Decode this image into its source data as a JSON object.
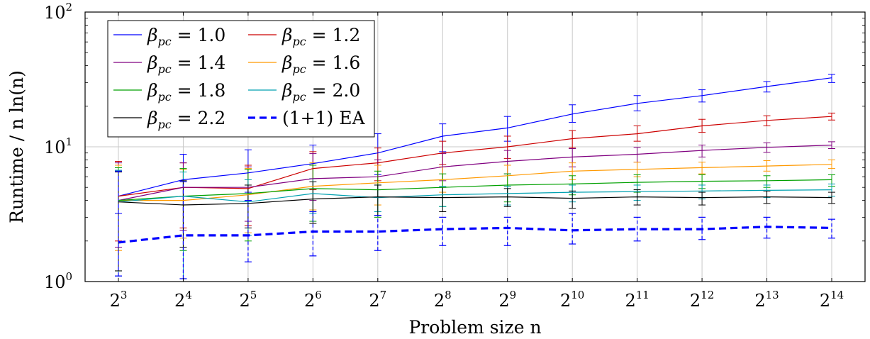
{
  "chart_data": {
    "type": "line",
    "title": "",
    "xlabel": "Problem size n",
    "ylabel": "Runtime / n ln(n)",
    "yscale": "log",
    "ylim": [
      1,
      100
    ],
    "y_ticks": [
      {
        "value": 1,
        "base": "10",
        "exp": "0"
      },
      {
        "value": 10,
        "base": "10",
        "exp": "1"
      },
      {
        "value": 100,
        "base": "10",
        "exp": "2"
      }
    ],
    "grid": true,
    "legend_position": "top-left",
    "categories": [
      {
        "base": "2",
        "exp": "3"
      },
      {
        "base": "2",
        "exp": "4"
      },
      {
        "base": "2",
        "exp": "5"
      },
      {
        "base": "2",
        "exp": "6"
      },
      {
        "base": "2",
        "exp": "7"
      },
      {
        "base": "2",
        "exp": "8"
      },
      {
        "base": "2",
        "exp": "9"
      },
      {
        "base": "2",
        "exp": "10"
      },
      {
        "base": "2",
        "exp": "11"
      },
      {
        "base": "2",
        "exp": "12"
      },
      {
        "base": "2",
        "exp": "13"
      },
      {
        "base": "2",
        "exp": "14"
      }
    ],
    "series": [
      {
        "name": "β_pc = 1.0",
        "legend": {
          "symbol": "β",
          "sub": "pc",
          "rest": " = 1.0"
        },
        "color": "#0000ff",
        "dashed": false,
        "values": [
          4.3,
          5.7,
          6.4,
          7.5,
          9.0,
          12.0,
          13.8,
          17.5,
          21.0,
          24.0,
          28.0,
          32.5
        ],
        "err_low": [
          3.2,
          4.3,
          4.6,
          5.8,
          6.2,
          9.2,
          11.0,
          15.2,
          18.5,
          21.5,
          25.5,
          30.0
        ],
        "err_high": [
          7.8,
          8.8,
          9.5,
          10.3,
          12.5,
          14.8,
          16.8,
          20.5,
          24.0,
          26.5,
          30.5,
          34.5
        ]
      },
      {
        "name": "β_pc = 1.2",
        "legend": {
          "symbol": "β",
          "sub": "pc",
          "rest": " = 1.2"
        },
        "color": "#cc0000",
        "dashed": false,
        "values": [
          4.3,
          5.0,
          4.9,
          6.9,
          7.6,
          9.0,
          10.0,
          11.5,
          12.5,
          14.3,
          15.7,
          16.8
        ],
        "err_low": [
          2.0,
          2.5,
          2.6,
          4.8,
          5.6,
          7.4,
          8.2,
          9.8,
          11.0,
          12.8,
          14.3,
          15.8
        ],
        "err_high": [
          7.8,
          7.6,
          7.3,
          9.2,
          9.8,
          11.0,
          12.0,
          13.2,
          14.3,
          16.0,
          17.0,
          17.8
        ]
      },
      {
        "name": "β_pc = 1.4",
        "legend": {
          "symbol": "β",
          "sub": "pc",
          "rest": " = 1.4"
        },
        "color": "#800080",
        "dashed": false,
        "values": [
          4.0,
          5.0,
          5.0,
          5.8,
          6.0,
          7.1,
          7.8,
          8.4,
          8.8,
          9.4,
          9.9,
          10.3
        ],
        "err_low": [
          1.8,
          2.4,
          2.8,
          4.0,
          4.2,
          5.6,
          6.3,
          7.1,
          7.7,
          8.4,
          9.1,
          9.7
        ],
        "err_high": [
          7.6,
          7.6,
          7.1,
          8.9,
          8.0,
          8.9,
          9.4,
          9.7,
          9.9,
          10.3,
          10.7,
          10.9
        ]
      },
      {
        "name": "β_pc = 1.6",
        "legend": {
          "symbol": "β",
          "sub": "pc",
          "rest": " = 1.6"
        },
        "color": "#ff9900",
        "dashed": false,
        "values": [
          4.0,
          4.0,
          4.4,
          5.1,
          5.4,
          5.7,
          6.1,
          6.6,
          6.8,
          7.0,
          7.2,
          7.4
        ],
        "err_low": [
          1.7,
          2.1,
          2.3,
          3.4,
          3.7,
          4.6,
          5.1,
          5.7,
          6.0,
          6.3,
          6.6,
          6.9
        ],
        "err_high": [
          7.3,
          6.8,
          6.9,
          7.6,
          7.3,
          7.1,
          7.3,
          7.6,
          7.7,
          7.7,
          7.9,
          8.0
        ]
      },
      {
        "name": "β_pc = 1.8",
        "legend": {
          "symbol": "β",
          "sub": "pc",
          "rest": " = 1.8"
        },
        "color": "#00a000",
        "dashed": false,
        "values": [
          4.0,
          4.3,
          4.5,
          4.9,
          4.8,
          5.0,
          5.2,
          5.3,
          5.45,
          5.55,
          5.6,
          5.7
        ],
        "err_low": [
          1.2,
          1.7,
          2.0,
          2.8,
          3.0,
          3.6,
          3.9,
          4.4,
          4.6,
          4.9,
          5.0,
          5.1
        ],
        "err_high": [
          7.0,
          6.9,
          6.8,
          7.3,
          6.6,
          6.3,
          6.3,
          6.1,
          6.2,
          6.2,
          6.1,
          6.2
        ]
      },
      {
        "name": "β_pc = 2.0",
        "legend": {
          "symbol": "β",
          "sub": "pc",
          "rest": " = 2.0"
        },
        "color": "#00a0b0",
        "dashed": false,
        "values": [
          3.9,
          4.3,
          3.9,
          4.5,
          4.2,
          4.4,
          4.5,
          4.6,
          4.65,
          4.7,
          4.75,
          4.8
        ],
        "err_low": [
          1.1,
          1.05,
          2.2,
          3.2,
          3.3,
          3.6,
          3.7,
          3.9,
          4.0,
          4.1,
          4.2,
          4.3
        ],
        "err_high": [
          6.7,
          6.5,
          5.7,
          5.8,
          5.2,
          5.1,
          5.1,
          5.2,
          5.2,
          5.2,
          5.2,
          5.3
        ]
      },
      {
        "name": "β_pc = 2.2",
        "legend": {
          "symbol": "β",
          "sub": "pc",
          "rest": " = 2.2"
        },
        "color": "#000000",
        "dashed": false,
        "values": [
          3.9,
          3.7,
          3.8,
          4.1,
          4.25,
          4.2,
          4.25,
          4.15,
          4.25,
          4.2,
          4.25,
          4.2
        ],
        "err_low": [
          1.2,
          1.8,
          2.5,
          2.7,
          3.1,
          3.3,
          3.6,
          3.5,
          3.7,
          3.7,
          3.8,
          3.8
        ],
        "err_high": [
          6.5,
          5.6,
          5.2,
          5.5,
          5.2,
          5.0,
          4.9,
          4.7,
          4.8,
          4.6,
          4.7,
          4.6
        ]
      },
      {
        "name": "(1+1) EA",
        "legend": {
          "symbol": "",
          "sub": "",
          "rest": "(1+1) EA"
        },
        "color": "#0000ff",
        "dashed": true,
        "values": [
          1.95,
          2.2,
          2.2,
          2.35,
          2.35,
          2.45,
          2.5,
          2.4,
          2.45,
          2.45,
          2.55,
          2.5
        ],
        "err_low": [
          1.1,
          1.05,
          1.4,
          1.55,
          1.7,
          1.85,
          1.85,
          1.9,
          2.0,
          2.05,
          2.1,
          2.1
        ],
        "err_high": [
          6.6,
          5.5,
          4.0,
          3.3,
          3.1,
          3.0,
          3.0,
          3.2,
          3.0,
          3.0,
          3.0,
          2.9
        ]
      }
    ]
  }
}
